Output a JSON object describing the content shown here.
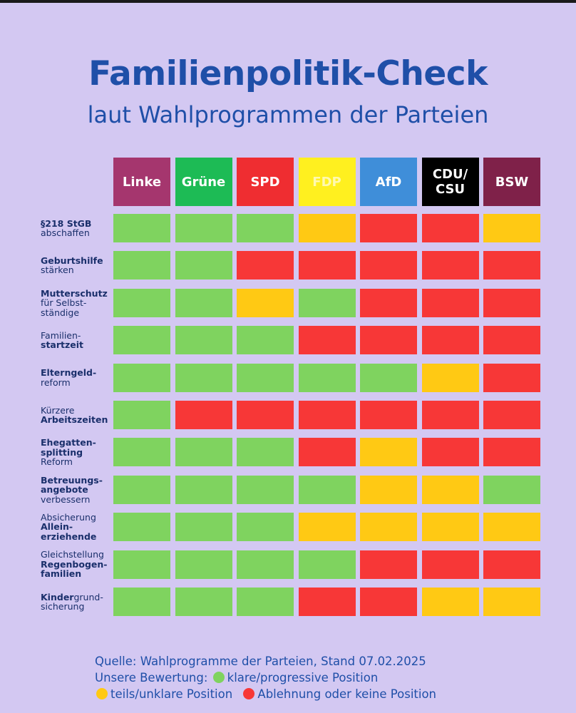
{
  "title": "Familienpolitik-Check",
  "subtitle": "laut Wahlprogrammen der Parteien",
  "colors": {
    "title": "#1f4fa8",
    "green": "#7fd35f",
    "yellow": "#ffc914",
    "red": "#f73737"
  },
  "chart_data": {
    "type": "table",
    "parties": [
      {
        "label": "Linke",
        "bg": "#a5366e",
        "fg": "#ffffff"
      },
      {
        "label": "Grüne",
        "bg": "#1dbb55",
        "fg": "#ffffff"
      },
      {
        "label": "SPD",
        "bg": "#ef2d31",
        "fg": "#ffffff"
      },
      {
        "label": "FDP",
        "bg": "#fff01f",
        "fg": "#fff9b0"
      },
      {
        "label": "AfD",
        "bg": "#3f8ed9",
        "fg": "#ffffff"
      },
      {
        "label": "CDU/\nCSU",
        "bg": "#000000",
        "fg": "#ffffff"
      },
      {
        "label": "BSW",
        "bg": "#7f2149",
        "fg": "#ffffff"
      }
    ],
    "rows": [
      {
        "label": [
          {
            "t": "§218 StGB",
            "b": true
          },
          {
            "t": "abschaffen",
            "b": false
          }
        ],
        "ratings": [
          "green",
          "green",
          "green",
          "yellow",
          "red",
          "red",
          "yellow"
        ]
      },
      {
        "label": [
          {
            "t": "Geburtshilfe",
            "b": true
          },
          {
            "t": "stärken",
            "b": false
          }
        ],
        "ratings": [
          "green",
          "green",
          "red",
          "red",
          "red",
          "red",
          "red"
        ]
      },
      {
        "label": [
          {
            "t": "Mutterschutz",
            "b": true
          },
          {
            "t": "für Selbst-",
            "b": false
          },
          {
            "t": "ständige",
            "b": false
          }
        ],
        "ratings": [
          "green",
          "green",
          "yellow",
          "green",
          "red",
          "red",
          "red"
        ]
      },
      {
        "label": [
          {
            "t": "Familien-",
            "b": false
          },
          {
            "t": "startzeit",
            "b": true
          }
        ],
        "ratings": [
          "green",
          "green",
          "green",
          "red",
          "red",
          "red",
          "red"
        ]
      },
      {
        "label": [
          {
            "t": "Elterngeld-",
            "b": true
          },
          {
            "t": "reform",
            "b": false
          }
        ],
        "ratings": [
          "green",
          "green",
          "green",
          "green",
          "green",
          "yellow",
          "red"
        ]
      },
      {
        "label": [
          {
            "t": "Kürzere",
            "b": false
          },
          {
            "t": "Arbeitszeiten",
            "b": true
          }
        ],
        "ratings": [
          "green",
          "red",
          "red",
          "red",
          "red",
          "red",
          "red"
        ]
      },
      {
        "label": [
          {
            "t": "Ehegatten-",
            "b": true
          },
          {
            "t": "splitting",
            "b": true
          },
          {
            "t": "Reform",
            "b": false
          }
        ],
        "ratings": [
          "green",
          "green",
          "green",
          "red",
          "yellow",
          "red",
          "red"
        ]
      },
      {
        "label": [
          {
            "t": "Betreuungs-",
            "b": true
          },
          {
            "t": "angebote",
            "b": true
          },
          {
            "t": "verbessern",
            "b": false
          }
        ],
        "ratings": [
          "green",
          "green",
          "green",
          "green",
          "yellow",
          "yellow",
          "green"
        ]
      },
      {
        "label": [
          {
            "t": "Absicherung",
            "b": false
          },
          {
            "t": "Allein-",
            "b": true
          },
          {
            "t": "erziehende",
            "b": true
          }
        ],
        "ratings": [
          "green",
          "green",
          "green",
          "yellow",
          "yellow",
          "yellow",
          "yellow"
        ]
      },
      {
        "label": [
          {
            "t": "Gleichstellung",
            "b": false
          },
          {
            "t": "Regenbogen-",
            "b": true
          },
          {
            "t": "familien",
            "b": true
          }
        ],
        "ratings": [
          "green",
          "green",
          "green",
          "green",
          "red",
          "red",
          "red"
        ]
      },
      {
        "label": [
          {
            "t": "Kinder",
            "b": true
          },
          {
            "t": "grund-",
            "b": false,
            "inline": true
          },
          {
            "t": "sicherung",
            "b": false
          }
        ],
        "ratings": [
          "green",
          "green",
          "green",
          "red",
          "red",
          "yellow",
          "yellow"
        ]
      }
    ],
    "legend": [
      {
        "key": "green",
        "label": "klare/progressive Position"
      },
      {
        "key": "yellow",
        "label": "teils/unklare Position"
      },
      {
        "key": "red",
        "label": "Ablehnung oder keine Position"
      }
    ]
  },
  "footer": {
    "source": "Quelle: Wahlprogramme der Parteien, Stand 07.02.2025",
    "legend_intro": "Unsere Bewertung:"
  }
}
